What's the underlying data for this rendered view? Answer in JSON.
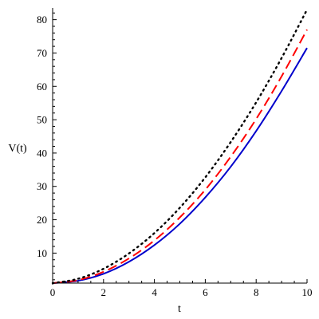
{
  "chart_data": {
    "type": "line",
    "xlabel": "t",
    "ylabel": "V(t)",
    "xlim": [
      0,
      10
    ],
    "ylim": [
      1,
      83.5
    ],
    "xticks": [
      0,
      2,
      4,
      6,
      8,
      10
    ],
    "yticks": [
      10,
      20,
      30,
      40,
      50,
      60,
      70,
      80
    ],
    "grid": false,
    "legend": "none",
    "series": [
      {
        "color": "#0000cc",
        "style": "solid",
        "x": [
          0,
          1,
          2,
          3,
          4,
          5,
          6,
          7,
          8,
          9,
          10
        ],
        "y": [
          1.0,
          1.7,
          3.8,
          7.4,
          12.4,
          18.8,
          26.7,
          35.9,
          46.6,
          58.6,
          71.5
        ]
      },
      {
        "color": "#ff0000",
        "style": "dashed",
        "x": [
          0,
          1,
          2,
          3,
          4,
          5,
          6,
          7,
          8,
          9,
          10
        ],
        "y": [
          1.0,
          1.9,
          4.4,
          8.4,
          13.8,
          20.7,
          29.0,
          38.9,
          50.2,
          63.0,
          77.0
        ]
      },
      {
        "color": "#000000",
        "style": "dotted",
        "x": [
          0,
          1,
          2,
          3,
          4,
          5,
          6,
          7,
          8,
          9,
          10
        ],
        "y": [
          1.0,
          2.3,
          5.3,
          9.9,
          16.0,
          23.6,
          32.7,
          43.3,
          55.2,
          68.5,
          83.0
        ]
      }
    ]
  }
}
